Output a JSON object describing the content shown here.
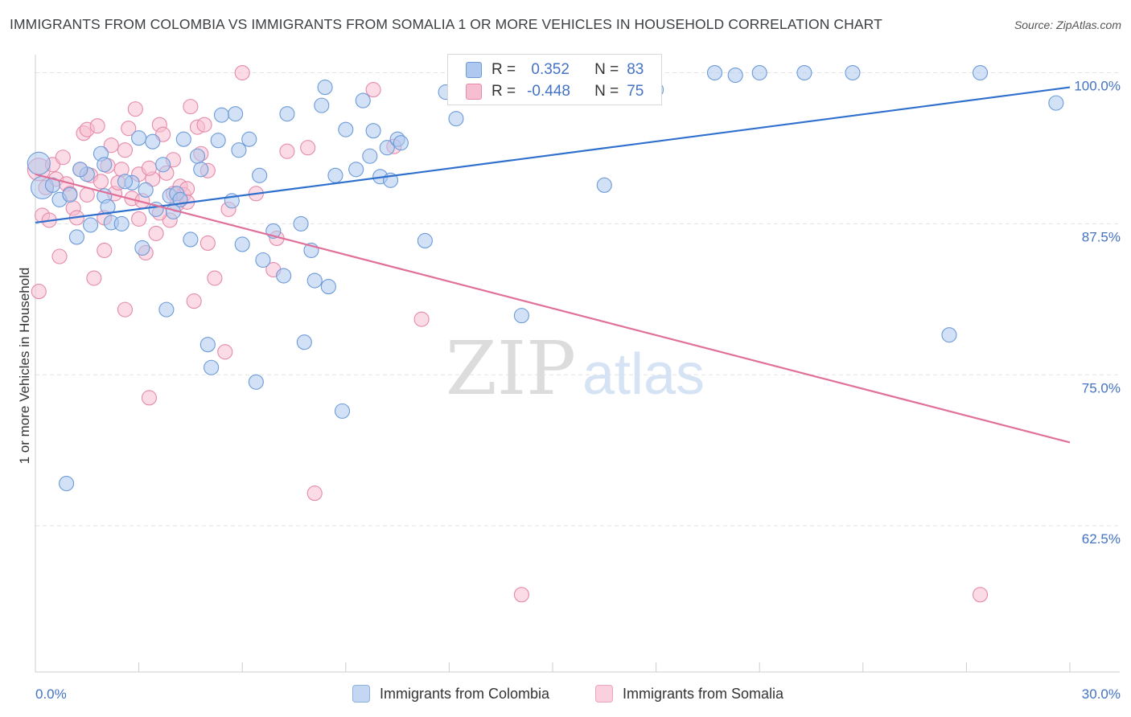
{
  "title": "IMMIGRANTS FROM COLOMBIA VS IMMIGRANTS FROM SOMALIA 1 OR MORE VEHICLES IN HOUSEHOLD CORRELATION CHART",
  "source": "Source: ZipAtlas.com",
  "watermark": {
    "zip": "ZIP",
    "atlas": "atlas"
  },
  "legend": {
    "rows": [
      {
        "r_label": "R =",
        "r_value": " 0.352",
        "n_label": "N =",
        "n_value": "83"
      },
      {
        "r_label": "R =",
        "r_value": "-0.448",
        "n_label": "N =",
        "n_value": "75"
      }
    ]
  },
  "bottom_legend": {
    "colombia": "Immigrants from Colombia",
    "somalia": "Immigrants from Somalia"
  },
  "colors": {
    "colombia_fill": "#aec8ef",
    "colombia_stroke": "#6b9bd8",
    "colombia_line": "#2f6fcd",
    "somalia_fill": "#f7bdd0",
    "somalia_stroke": "#e58aaa",
    "somalia_line": "#e0709a",
    "grid": "#e3e3e3",
    "tick_text": "#4472c4"
  },
  "chart_data": {
    "type": "scatter",
    "title": "IMMIGRANTS FROM COLOMBIA VS IMMIGRANTS FROM SOMALIA 1 OR MORE VEHICLES IN HOUSEHOLD CORRELATION CHART",
    "xlabel": "",
    "ylabel": "1 or more Vehicles in Household",
    "xlim": [
      0,
      30
    ],
    "ylim": [
      50.4,
      101.5
    ],
    "x_tick_labels": [
      "0.0%",
      "30.0%"
    ],
    "y_ticks": [
      {
        "value": 100.0,
        "label": "100.0%"
      },
      {
        "value": 87.5,
        "label": "87.5%"
      },
      {
        "value": 75.0,
        "label": "75.0%"
      },
      {
        "value": 62.5,
        "label": "62.5%"
      }
    ],
    "grid": true,
    "series": [
      {
        "name": "Immigrants from Colombia",
        "trend": {
          "x": [
            0,
            30
          ],
          "y": [
            87.6,
            98.8
          ]
        },
        "points": [
          {
            "x": 0.1,
            "y": 92.5,
            "big": true
          },
          {
            "x": 0.2,
            "y": 90.5,
            "big": true
          },
          {
            "x": 0.5,
            "y": 90.7
          },
          {
            "x": 0.7,
            "y": 89.5
          },
          {
            "x": 0.9,
            "y": 66.0
          },
          {
            "x": 1.0,
            "y": 89.9
          },
          {
            "x": 1.2,
            "y": 86.4
          },
          {
            "x": 1.5,
            "y": 91.6
          },
          {
            "x": 1.6,
            "y": 87.4
          },
          {
            "x": 1.9,
            "y": 93.3
          },
          {
            "x": 2.0,
            "y": 92.4
          },
          {
            "x": 2.0,
            "y": 89.8
          },
          {
            "x": 2.1,
            "y": 88.9
          },
          {
            "x": 2.2,
            "y": 87.6
          },
          {
            "x": 2.5,
            "y": 87.5
          },
          {
            "x": 2.8,
            "y": 90.9
          },
          {
            "x": 3.0,
            "y": 94.6
          },
          {
            "x": 3.1,
            "y": 85.5
          },
          {
            "x": 3.2,
            "y": 90.3
          },
          {
            "x": 3.4,
            "y": 94.3
          },
          {
            "x": 3.5,
            "y": 88.7
          },
          {
            "x": 3.7,
            "y": 92.4
          },
          {
            "x": 3.8,
            "y": 80.4
          },
          {
            "x": 3.9,
            "y": 89.8
          },
          {
            "x": 4.1,
            "y": 90.0
          },
          {
            "x": 4.2,
            "y": 89.5
          },
          {
            "x": 4.3,
            "y": 94.5
          },
          {
            "x": 4.5,
            "y": 86.2
          },
          {
            "x": 4.7,
            "y": 93.1
          },
          {
            "x": 4.8,
            "y": 92.0
          },
          {
            "x": 5.0,
            "y": 77.5
          },
          {
            "x": 5.1,
            "y": 75.6
          },
          {
            "x": 5.3,
            "y": 94.4
          },
          {
            "x": 5.4,
            "y": 96.5
          },
          {
            "x": 5.7,
            "y": 89.4
          },
          {
            "x": 5.8,
            "y": 96.6
          },
          {
            "x": 5.9,
            "y": 93.6
          },
          {
            "x": 6.0,
            "y": 85.8
          },
          {
            "x": 6.2,
            "y": 94.5
          },
          {
            "x": 6.4,
            "y": 74.4
          },
          {
            "x": 6.5,
            "y": 91.5
          },
          {
            "x": 6.6,
            "y": 84.5
          },
          {
            "x": 6.9,
            "y": 86.9
          },
          {
            "x": 7.2,
            "y": 83.2
          },
          {
            "x": 7.3,
            "y": 96.6
          },
          {
            "x": 7.7,
            "y": 87.5
          },
          {
            "x": 7.8,
            "y": 77.7
          },
          {
            "x": 8.0,
            "y": 85.3
          },
          {
            "x": 8.1,
            "y": 82.8
          },
          {
            "x": 8.3,
            "y": 97.3
          },
          {
            "x": 8.4,
            "y": 98.8
          },
          {
            "x": 8.5,
            "y": 82.3
          },
          {
            "x": 8.7,
            "y": 91.5
          },
          {
            "x": 8.9,
            "y": 72.0
          },
          {
            "x": 9.0,
            "y": 95.3
          },
          {
            "x": 9.3,
            "y": 92.0
          },
          {
            "x": 9.5,
            "y": 97.7
          },
          {
            "x": 9.7,
            "y": 93.1
          },
          {
            "x": 9.8,
            "y": 95.2
          },
          {
            "x": 10.0,
            "y": 91.4
          },
          {
            "x": 10.2,
            "y": 93.8
          },
          {
            "x": 10.3,
            "y": 91.1
          },
          {
            "x": 10.5,
            "y": 94.5
          },
          {
            "x": 10.6,
            "y": 94.2
          },
          {
            "x": 11.3,
            "y": 86.1
          },
          {
            "x": 11.9,
            "y": 98.4
          },
          {
            "x": 12.2,
            "y": 96.2
          },
          {
            "x": 13.8,
            "y": 100.0
          },
          {
            "x": 14.3,
            "y": 100.0
          },
          {
            "x": 14.1,
            "y": 79.9
          },
          {
            "x": 16.5,
            "y": 90.7
          },
          {
            "x": 18.0,
            "y": 98.6
          },
          {
            "x": 19.7,
            "y": 100.0
          },
          {
            "x": 20.3,
            "y": 99.8
          },
          {
            "x": 21.0,
            "y": 100.0
          },
          {
            "x": 22.3,
            "y": 100.0
          },
          {
            "x": 23.7,
            "y": 100.0
          },
          {
            "x": 26.5,
            "y": 78.3
          },
          {
            "x": 27.4,
            "y": 100.0
          },
          {
            "x": 29.6,
            "y": 97.5
          },
          {
            "x": 1.3,
            "y": 92.0
          },
          {
            "x": 2.6,
            "y": 91.0
          },
          {
            "x": 4.0,
            "y": 88.5
          }
        ]
      },
      {
        "name": "Immigrants from Somalia",
        "trend": {
          "x": [
            0,
            30
          ],
          "y": [
            91.6,
            69.4
          ]
        },
        "points": [
          {
            "x": 0.1,
            "y": 92.0,
            "big": true
          },
          {
            "x": 0.1,
            "y": 81.9
          },
          {
            "x": 0.2,
            "y": 88.2
          },
          {
            "x": 0.4,
            "y": 87.8
          },
          {
            "x": 0.5,
            "y": 92.4
          },
          {
            "x": 0.6,
            "y": 91.2
          },
          {
            "x": 0.7,
            "y": 84.8
          },
          {
            "x": 0.9,
            "y": 90.8
          },
          {
            "x": 1.0,
            "y": 90.0
          },
          {
            "x": 1.1,
            "y": 88.8
          },
          {
            "x": 1.2,
            "y": 88.0
          },
          {
            "x": 1.3,
            "y": 92.0
          },
          {
            "x": 1.4,
            "y": 95.0
          },
          {
            "x": 1.5,
            "y": 95.3
          },
          {
            "x": 1.6,
            "y": 91.5
          },
          {
            "x": 1.7,
            "y": 83.0
          },
          {
            "x": 1.8,
            "y": 95.6
          },
          {
            "x": 1.9,
            "y": 91.0
          },
          {
            "x": 2.0,
            "y": 85.3
          },
          {
            "x": 2.1,
            "y": 92.3
          },
          {
            "x": 2.2,
            "y": 94.0
          },
          {
            "x": 2.3,
            "y": 90.0
          },
          {
            "x": 2.4,
            "y": 90.9
          },
          {
            "x": 2.5,
            "y": 92.0
          },
          {
            "x": 2.6,
            "y": 80.4
          },
          {
            "x": 2.7,
            "y": 95.4
          },
          {
            "x": 2.8,
            "y": 89.6
          },
          {
            "x": 2.9,
            "y": 97.0
          },
          {
            "x": 3.0,
            "y": 91.6
          },
          {
            "x": 3.1,
            "y": 89.4
          },
          {
            "x": 3.2,
            "y": 85.1
          },
          {
            "x": 3.3,
            "y": 73.1
          },
          {
            "x": 3.4,
            "y": 91.2
          },
          {
            "x": 3.5,
            "y": 86.7
          },
          {
            "x": 3.6,
            "y": 95.7
          },
          {
            "x": 3.7,
            "y": 94.9
          },
          {
            "x": 3.8,
            "y": 91.7
          },
          {
            "x": 3.9,
            "y": 87.8
          },
          {
            "x": 4.0,
            "y": 90.0
          },
          {
            "x": 4.1,
            "y": 89.1
          },
          {
            "x": 4.2,
            "y": 90.6
          },
          {
            "x": 4.3,
            "y": 89.9
          },
          {
            "x": 4.4,
            "y": 90.4
          },
          {
            "x": 4.5,
            "y": 97.2
          },
          {
            "x": 4.6,
            "y": 81.1
          },
          {
            "x": 4.7,
            "y": 95.5
          },
          {
            "x": 4.8,
            "y": 93.3
          },
          {
            "x": 4.9,
            "y": 95.7
          },
          {
            "x": 5.0,
            "y": 85.9
          },
          {
            "x": 5.2,
            "y": 83.0
          },
          {
            "x": 5.5,
            "y": 76.9
          },
          {
            "x": 6.0,
            "y": 100.0
          },
          {
            "x": 6.9,
            "y": 83.7
          },
          {
            "x": 7.3,
            "y": 93.5
          },
          {
            "x": 7.9,
            "y": 93.8
          },
          {
            "x": 8.1,
            "y": 65.2
          },
          {
            "x": 9.8,
            "y": 98.6
          },
          {
            "x": 10.4,
            "y": 93.9
          },
          {
            "x": 11.2,
            "y": 79.6
          },
          {
            "x": 14.1,
            "y": 56.8
          },
          {
            "x": 0.3,
            "y": 90.5
          },
          {
            "x": 0.8,
            "y": 93.0
          },
          {
            "x": 1.5,
            "y": 89.9
          },
          {
            "x": 2.0,
            "y": 88.0
          },
          {
            "x": 2.6,
            "y": 93.6
          },
          {
            "x": 3.0,
            "y": 87.9
          },
          {
            "x": 3.3,
            "y": 92.1
          },
          {
            "x": 3.6,
            "y": 88.4
          },
          {
            "x": 4.0,
            "y": 92.8
          },
          {
            "x": 4.4,
            "y": 89.3
          },
          {
            "x": 5.0,
            "y": 91.9
          },
          {
            "x": 5.6,
            "y": 88.7
          },
          {
            "x": 6.4,
            "y": 90.0
          },
          {
            "x": 7.0,
            "y": 86.3
          },
          {
            "x": 27.4,
            "y": 56.8
          }
        ]
      }
    ]
  }
}
